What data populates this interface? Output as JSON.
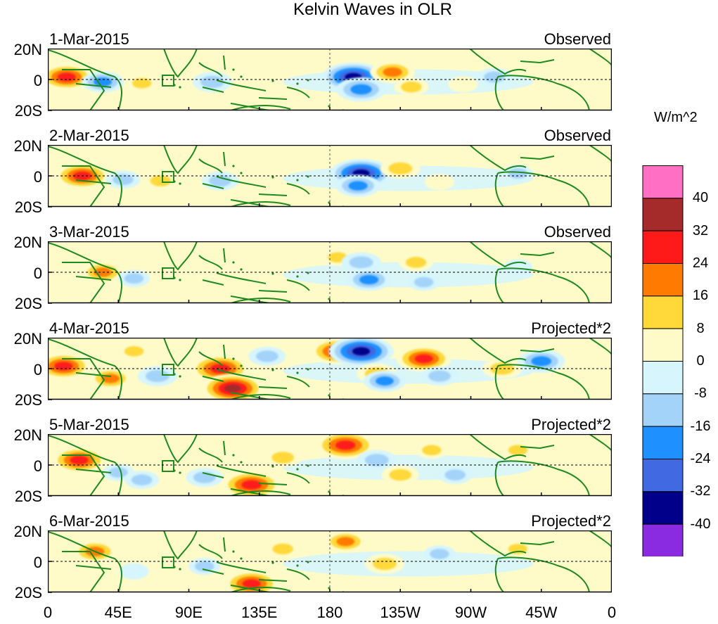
{
  "chart_data": {
    "type": "heatmap",
    "title": "Kelvin Waves in OLR",
    "unit": "W/m^2",
    "x_ticks": [
      "0",
      "45E",
      "90E",
      "135E",
      "180",
      "135W",
      "90W",
      "45W",
      "0"
    ],
    "y_ticks": [
      "20N",
      "0",
      "20S"
    ],
    "xlim": [
      0,
      360
    ],
    "ylim": [
      -25,
      25
    ],
    "colorbar": {
      "levels": [
        "40",
        "32",
        "24",
        "16",
        "8",
        "0",
        "-8",
        "-16",
        "-24",
        "-32",
        "-40"
      ],
      "colors": [
        "#ff6fc4",
        "#a52a2a",
        "#ff1a1a",
        "#ff7a00",
        "#ffd83a",
        "#fffbc8",
        "#d6f5fc",
        "#a4d3fa",
        "#1e90ff",
        "#4169e1",
        "#00008b",
        "#8a2be2"
      ]
    },
    "panels": [
      {
        "date": "1-Mar-2015",
        "kind": "Observed",
        "anomalies": [
          {
            "lon": 12,
            "lat": 2,
            "v": 30
          },
          {
            "lon": 35,
            "lat": -2,
            "v": -20
          },
          {
            "lon": 60,
            "lat": -3,
            "v": 12
          },
          {
            "lon": 105,
            "lat": -2,
            "v": -18
          },
          {
            "lon": 130,
            "lat": -8,
            "v": 10
          },
          {
            "lon": 195,
            "lat": 2,
            "v": -36
          },
          {
            "lon": 200,
            "lat": -8,
            "v": -26
          },
          {
            "lon": 220,
            "lat": 6,
            "v": 22
          },
          {
            "lon": 232,
            "lat": -6,
            "v": 14
          },
          {
            "lon": 265,
            "lat": -4,
            "v": 10
          },
          {
            "lon": 285,
            "lat": 2,
            "v": -14
          },
          {
            "lon": 320,
            "lat": -4,
            "v": 8
          }
        ]
      },
      {
        "date": "2-Mar-2015",
        "kind": "Observed",
        "anomalies": [
          {
            "lon": 22,
            "lat": 0,
            "v": 30
          },
          {
            "lon": 48,
            "lat": -3,
            "v": -14
          },
          {
            "lon": 72,
            "lat": -4,
            "v": 14
          },
          {
            "lon": 110,
            "lat": -4,
            "v": -16
          },
          {
            "lon": 150,
            "lat": 8,
            "v": 8
          },
          {
            "lon": 200,
            "lat": 2,
            "v": -36
          },
          {
            "lon": 198,
            "lat": -8,
            "v": -22
          },
          {
            "lon": 225,
            "lat": 6,
            "v": 18
          },
          {
            "lon": 250,
            "lat": -5,
            "v": 10
          },
          {
            "lon": 300,
            "lat": 2,
            "v": -12
          },
          {
            "lon": 315,
            "lat": 10,
            "v": 10
          }
        ]
      },
      {
        "date": "3-Mar-2015",
        "kind": "Observed",
        "anomalies": [
          {
            "lon": 35,
            "lat": 0,
            "v": 20
          },
          {
            "lon": 55,
            "lat": -5,
            "v": -12
          },
          {
            "lon": 95,
            "lat": -8,
            "v": 10
          },
          {
            "lon": 160,
            "lat": 10,
            "v": 10
          },
          {
            "lon": 185,
            "lat": 12,
            "v": 12
          },
          {
            "lon": 200,
            "lat": 8,
            "v": -18
          },
          {
            "lon": 205,
            "lat": -6,
            "v": -22
          },
          {
            "lon": 235,
            "lat": 8,
            "v": 14
          },
          {
            "lon": 240,
            "lat": -8,
            "v": -12
          },
          {
            "lon": 300,
            "lat": 4,
            "v": -10
          }
        ]
      },
      {
        "date": "4-Mar-2015",
        "kind": "Projected*2",
        "anomalies": [
          {
            "lon": 10,
            "lat": 2,
            "v": 30
          },
          {
            "lon": 40,
            "lat": -8,
            "v": 20
          },
          {
            "lon": 55,
            "lat": 14,
            "v": 12
          },
          {
            "lon": 70,
            "lat": -6,
            "v": -18
          },
          {
            "lon": 110,
            "lat": 0,
            "v": 34
          },
          {
            "lon": 118,
            "lat": -16,
            "v": 36
          },
          {
            "lon": 140,
            "lat": 10,
            "v": -16
          },
          {
            "lon": 185,
            "lat": 14,
            "v": 30
          },
          {
            "lon": 200,
            "lat": 14,
            "v": -38
          },
          {
            "lon": 210,
            "lat": -4,
            "v": 18
          },
          {
            "lon": 215,
            "lat": -10,
            "v": -20
          },
          {
            "lon": 240,
            "lat": 8,
            "v": 30
          },
          {
            "lon": 250,
            "lat": -6,
            "v": -16
          },
          {
            "lon": 290,
            "lat": 0,
            "v": 18
          },
          {
            "lon": 315,
            "lat": 6,
            "v": -24
          }
        ]
      },
      {
        "date": "5-Mar-2015",
        "kind": "Projected*2",
        "anomalies": [
          {
            "lon": 20,
            "lat": 4,
            "v": 30
          },
          {
            "lon": 45,
            "lat": -6,
            "v": -12
          },
          {
            "lon": 60,
            "lat": -12,
            "v": -14
          },
          {
            "lon": 100,
            "lat": -10,
            "v": -16
          },
          {
            "lon": 130,
            "lat": -16,
            "v": 34
          },
          {
            "lon": 150,
            "lat": 6,
            "v": 16
          },
          {
            "lon": 190,
            "lat": 16,
            "v": 34
          },
          {
            "lon": 210,
            "lat": 4,
            "v": -18
          },
          {
            "lon": 225,
            "lat": -8,
            "v": 16
          },
          {
            "lon": 245,
            "lat": 12,
            "v": 12
          },
          {
            "lon": 260,
            "lat": -8,
            "v": -14
          },
          {
            "lon": 300,
            "lat": 12,
            "v": 12
          }
        ]
      },
      {
        "date": "6-Mar-2015",
        "kind": "Projected*2",
        "anomalies": [
          {
            "lon": 30,
            "lat": 8,
            "v": 22
          },
          {
            "lon": 55,
            "lat": -8,
            "v": -10
          },
          {
            "lon": 100,
            "lat": -4,
            "v": -12
          },
          {
            "lon": 130,
            "lat": -18,
            "v": 30
          },
          {
            "lon": 150,
            "lat": 10,
            "v": 14
          },
          {
            "lon": 190,
            "lat": 16,
            "v": 20
          },
          {
            "lon": 215,
            "lat": -2,
            "v": 18
          },
          {
            "lon": 250,
            "lat": 6,
            "v": -12
          },
          {
            "lon": 300,
            "lat": 10,
            "v": 12
          }
        ]
      }
    ]
  }
}
